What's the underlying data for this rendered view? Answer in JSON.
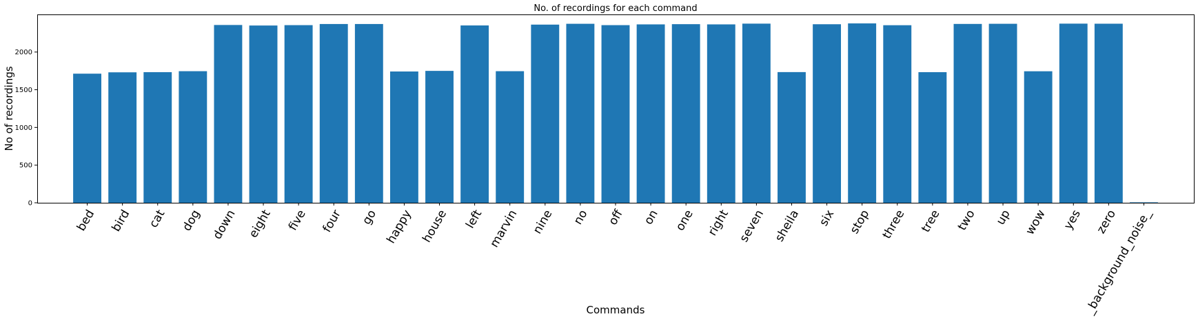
{
  "chart_data": {
    "type": "bar",
    "title": "No. of recordings for each command",
    "xlabel": "Commands",
    "ylabel": "No of recordings",
    "categories": [
      "bed",
      "bird",
      "cat",
      "dog",
      "down",
      "eight",
      "five",
      "four",
      "go",
      "happy",
      "house",
      "left",
      "marvin",
      "nine",
      "no",
      "off",
      "on",
      "one",
      "right",
      "seven",
      "sheila",
      "six",
      "stop",
      "three",
      "tree",
      "two",
      "up",
      "wow",
      "yes",
      "zero",
      "_background_noise_"
    ],
    "values": [
      1713,
      1731,
      1733,
      1746,
      2359,
      2352,
      2357,
      2372,
      2372,
      1742,
      1750,
      2353,
      1746,
      2364,
      2375,
      2357,
      2367,
      2370,
      2367,
      2377,
      1734,
      2369,
      2380,
      2356,
      1733,
      2373,
      2375,
      1745,
      2377,
      2376,
      6
    ],
    "ylim": [
      0,
      2500
    ],
    "yticks": [
      0,
      500,
      1000,
      1500,
      2000
    ],
    "xtick_rotation": -60,
    "bar_color": "#1f77b4",
    "grid": false
  }
}
